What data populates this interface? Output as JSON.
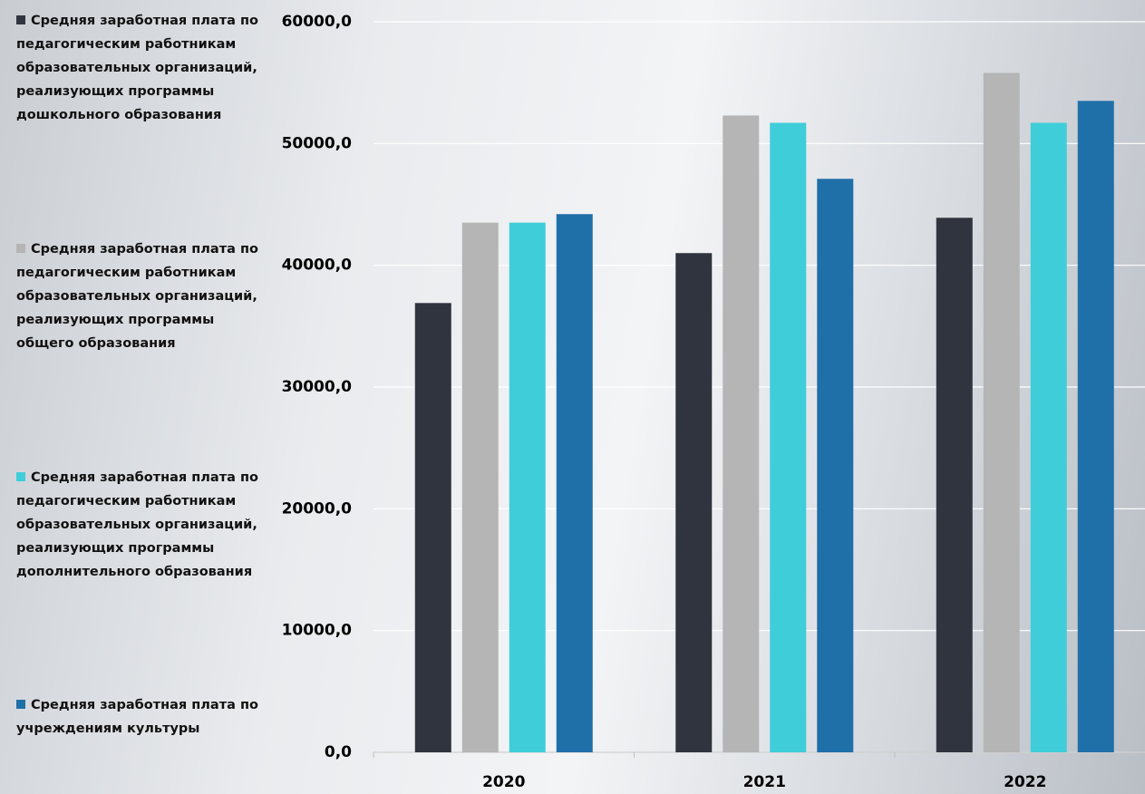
{
  "chart_data": {
    "type": "bar",
    "categories": [
      "2020",
      "2021",
      "2022"
    ],
    "series": [
      {
        "name": "Средняя заработная плата по педагогическим работникам образовательных организаций, реализующих программы дошкольного образования",
        "color": "#30343e",
        "values": [
          36900,
          41000,
          43900
        ]
      },
      {
        "name": "Средняя заработная плата по педагогическим работникам образовательных организаций, реализующих программы общего образования",
        "color": "#b5b5b5",
        "values": [
          43500,
          52300,
          55800
        ]
      },
      {
        "name": "Средняя заработная плата по педагогическим работникам образовательных организаций, реализующих программы дополнительного образования",
        "color": "#3fcdd9",
        "values": [
          43500,
          51700,
          51700
        ]
      },
      {
        "name": "Средняя заработная плата по учреждениям культуры",
        "color": "#1f6fa8",
        "values": [
          44200,
          47100,
          53500
        ]
      }
    ],
    "ylim": [
      0,
      60000
    ],
    "yticks": [
      {
        "value": 0,
        "label": "0,0"
      },
      {
        "value": 10000,
        "label": "10000,0"
      },
      {
        "value": 20000,
        "label": "20000,0"
      },
      {
        "value": 30000,
        "label": "30000,0"
      },
      {
        "value": 40000,
        "label": "40000,0"
      },
      {
        "value": 50000,
        "label": "50000,0"
      },
      {
        "value": 60000,
        "label": "60000,0"
      }
    ],
    "grid": true,
    "legend": "left"
  }
}
